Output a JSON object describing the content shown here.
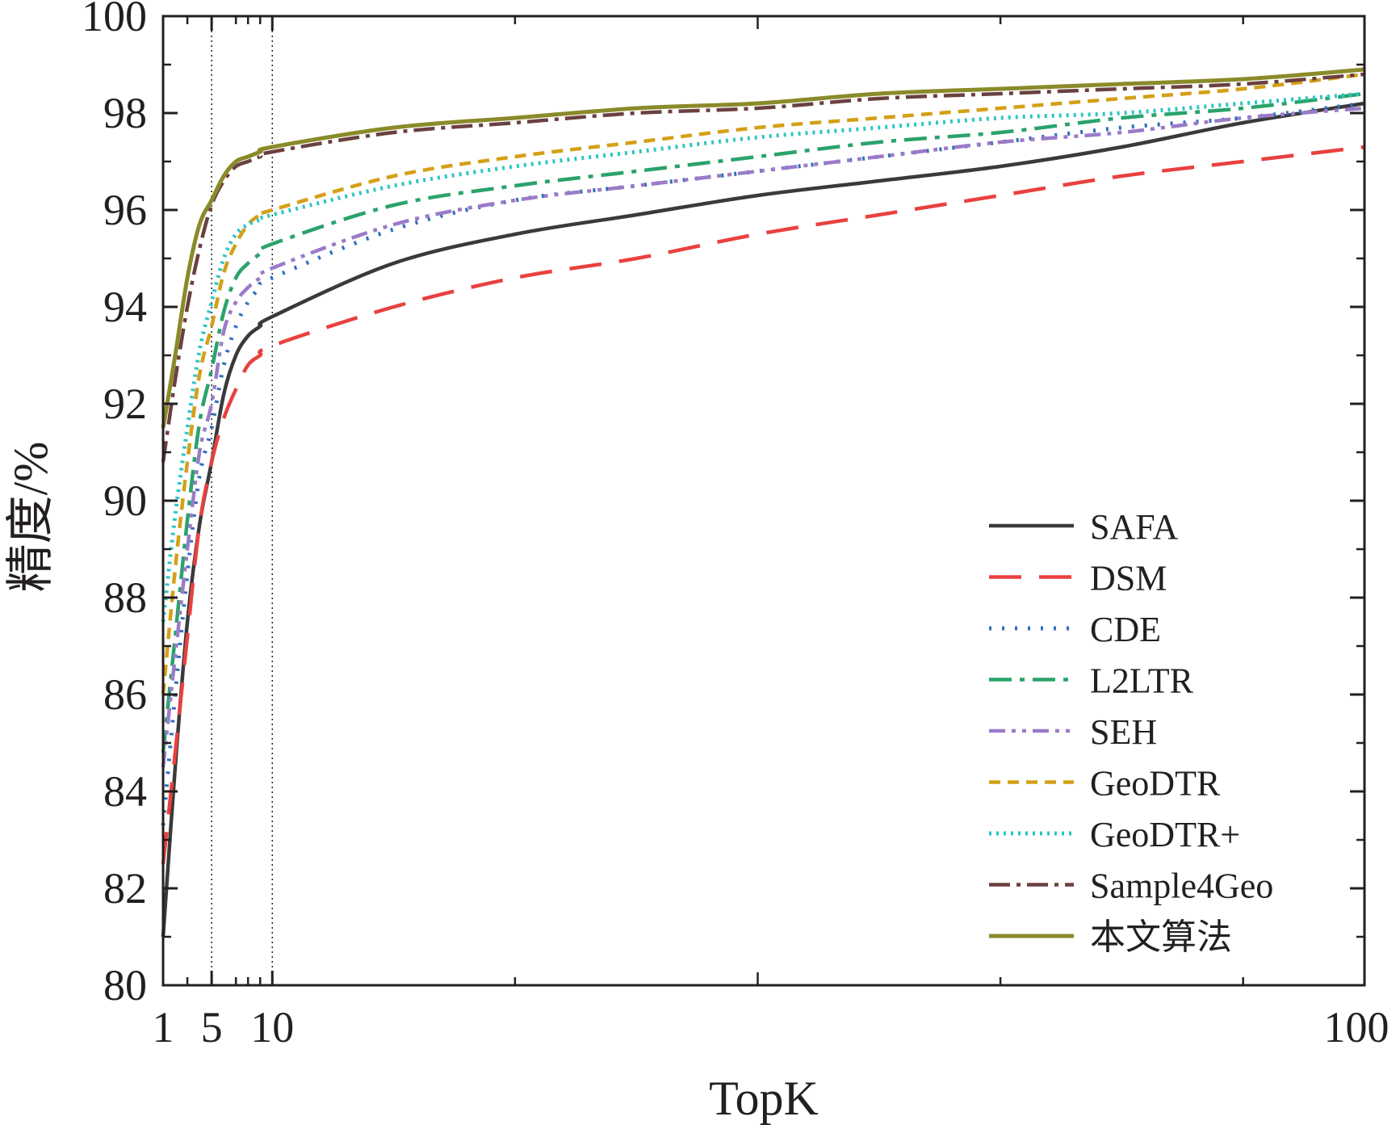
{
  "chart_data": {
    "type": "line",
    "title": "",
    "xlabel": "TopK",
    "ylabel": "精度/%",
    "xlim": [
      1,
      100
    ],
    "ylim": [
      80,
      100
    ],
    "xticks": [
      1,
      5,
      10,
      100
    ],
    "yticks": [
      80,
      82,
      84,
      86,
      88,
      90,
      92,
      94,
      96,
      98,
      100
    ],
    "reference_lines_x": [
      5,
      10
    ],
    "legend_position": "bottom-right",
    "grid": false,
    "x": [
      1,
      2,
      3,
      4,
      5,
      6,
      7,
      8,
      9,
      10,
      20,
      30,
      40,
      50,
      60,
      70,
      80,
      90,
      100
    ],
    "series": [
      {
        "name": "SAFA",
        "color": "#3a3a3a",
        "dash": "solid",
        "width": 4.5,
        "values": [
          81.0,
          84.5,
          87.5,
          89.5,
          90.8,
          92.2,
          93.0,
          93.4,
          93.6,
          93.8,
          94.9,
          95.5,
          95.9,
          96.3,
          96.6,
          96.9,
          97.3,
          97.8,
          98.2
        ]
      },
      {
        "name": "DSM",
        "color": "#e8413f",
        "dash": "40 22",
        "width": 4.5,
        "values": [
          82.5,
          84.8,
          87.2,
          89.5,
          90.8,
          91.7,
          92.3,
          92.8,
          93.0,
          93.2,
          94.0,
          94.6,
          95.0,
          95.5,
          95.9,
          96.3,
          96.7,
          97.0,
          97.3
        ]
      },
      {
        "name": "CDE",
        "color": "#2f6fbd",
        "dash": "3 13",
        "width": 5,
        "values": [
          83.3,
          86.0,
          88.5,
          90.5,
          91.5,
          92.8,
          93.6,
          94.1,
          94.4,
          94.6,
          95.6,
          96.2,
          96.5,
          96.8,
          97.1,
          97.4,
          97.7,
          97.9,
          98.2
        ]
      },
      {
        "name": "L2LTR",
        "color": "#2aa36b",
        "dash": "28 10 6 10",
        "width": 4.5,
        "values": [
          84.8,
          87.2,
          89.6,
          91.6,
          92.7,
          93.9,
          94.6,
          94.9,
          95.1,
          95.3,
          96.1,
          96.5,
          96.8,
          97.1,
          97.4,
          97.6,
          97.9,
          98.1,
          98.4
        ]
      },
      {
        "name": "SEH",
        "color": "#9b7bc8",
        "dash": "20 8 5 8 5 8",
        "width": 4.5,
        "values": [
          84.5,
          86.8,
          89.0,
          91.0,
          92.0,
          93.5,
          94.1,
          94.4,
          94.6,
          94.8,
          95.7,
          96.2,
          96.5,
          96.8,
          97.1,
          97.4,
          97.6,
          97.9,
          98.1
        ]
      },
      {
        "name": "GeoDTR",
        "color": "#d4a017",
        "dash": "14 9",
        "width": 4.5,
        "values": [
          86.0,
          88.6,
          90.8,
          92.6,
          93.6,
          94.7,
          95.3,
          95.7,
          95.9,
          96.0,
          96.7,
          97.1,
          97.4,
          97.7,
          97.9,
          98.1,
          98.3,
          98.5,
          98.8
        ]
      },
      {
        "name": "GeoDTR+",
        "color": "#2ec4c6",
        "dash": "3 6",
        "width": 5,
        "values": [
          87.5,
          89.7,
          91.5,
          93.1,
          94.1,
          95.0,
          95.5,
          95.7,
          95.8,
          95.9,
          96.5,
          96.9,
          97.2,
          97.5,
          97.7,
          97.9,
          98.0,
          98.2,
          98.4
        ]
      },
      {
        "name": "Sample4Geo",
        "color": "#6b4040",
        "dash": "26 8 5 8",
        "width": 4.5,
        "values": [
          90.8,
          92.5,
          94.0,
          95.2,
          96.1,
          96.6,
          96.9,
          97.0,
          97.1,
          97.2,
          97.6,
          97.8,
          98.0,
          98.1,
          98.3,
          98.4,
          98.5,
          98.6,
          98.8
        ]
      },
      {
        "name": "本文算法",
        "color": "#8a8a2a",
        "dash": "solid",
        "width": 5,
        "values": [
          91.5,
          93.0,
          94.6,
          95.7,
          96.2,
          96.7,
          97.0,
          97.1,
          97.2,
          97.3,
          97.7,
          97.9,
          98.1,
          98.2,
          98.4,
          98.5,
          98.6,
          98.7,
          98.9
        ]
      }
    ]
  }
}
